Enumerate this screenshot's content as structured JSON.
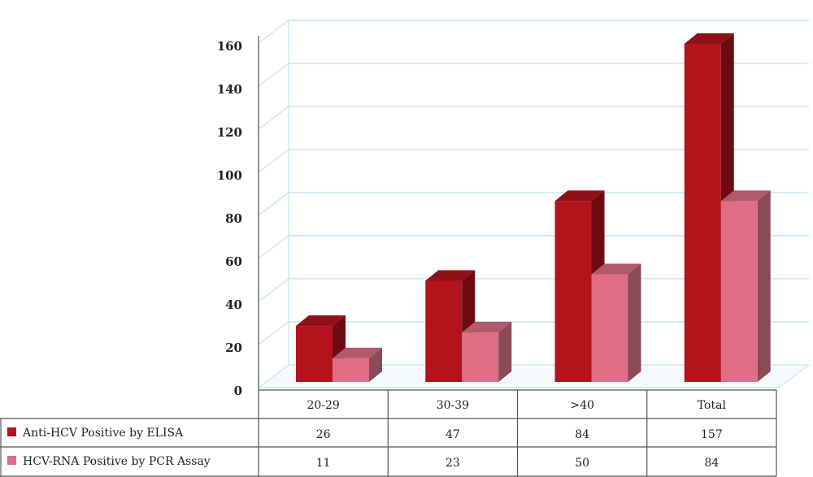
{
  "chart_data": {
    "type": "bar",
    "categories": [
      "20-29",
      "30-39",
      ">40",
      "Total"
    ],
    "series": [
      {
        "name": "Anti-HCV Positive by ELISA",
        "values": [
          26,
          47,
          84,
          157
        ]
      },
      {
        "name": "HCV-RNA Positive by PCR Assay",
        "values": [
          11,
          23,
          50,
          84
        ]
      }
    ],
    "ylim": [
      0,
      160
    ],
    "yticks": [
      "0",
      "20",
      "40",
      "60",
      "80",
      "100",
      "120",
      "140",
      "160"
    ],
    "grid": true,
    "legend": "data table below chart",
    "colors": {
      "series1_front": "#b3141c",
      "series1_side": "#6e0b10",
      "series1_top": "#8f1016",
      "series2_front": "#e06d86",
      "series2_side": "#8a4a56",
      "series2_top": "#b05a6c",
      "grid": "#c9e6f2",
      "highlight_value": "#2a46a8"
    },
    "highlighted_cell": {
      "series": 1,
      "category": 1
    }
  }
}
